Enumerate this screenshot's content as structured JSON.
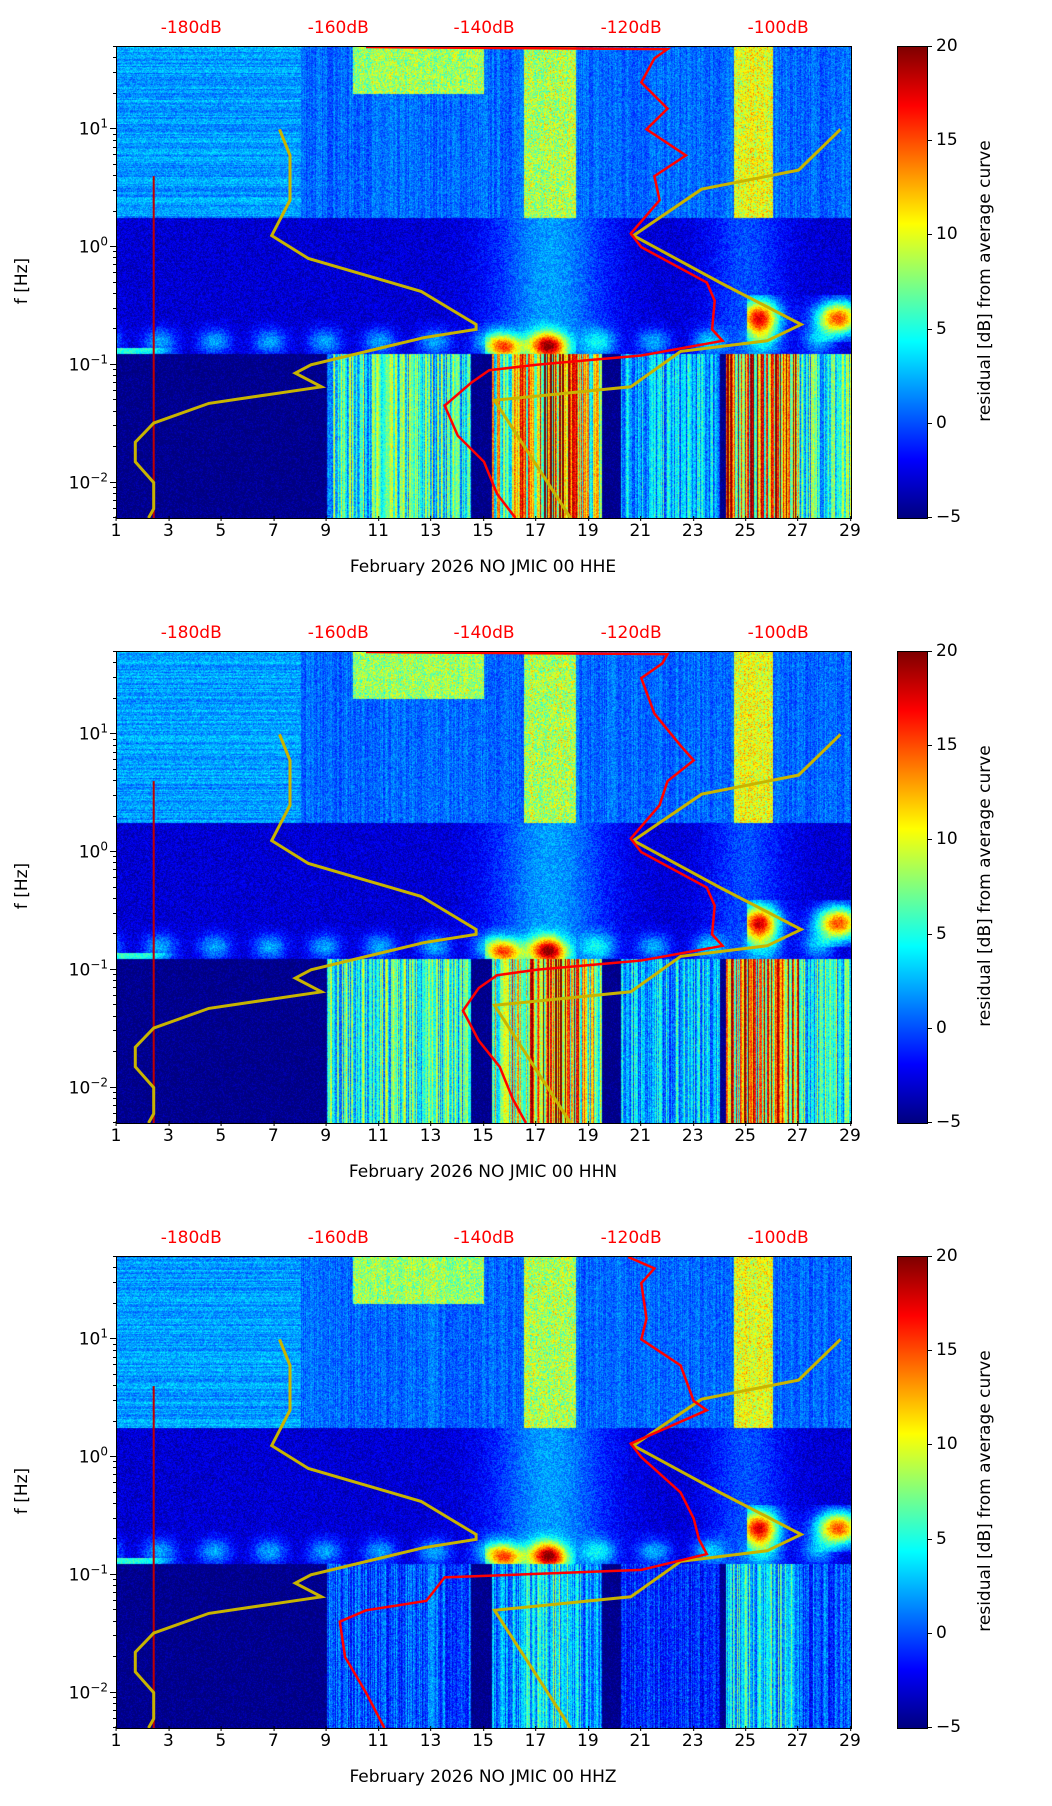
{
  "chart_data": [
    {
      "type": "heatmap",
      "title": "",
      "xlabel": "February 2026 NO JMIC 00 HHE",
      "ylabel": "f [Hz]",
      "xlim": [
        1,
        29
      ],
      "ylim": [
        0.005,
        50
      ],
      "yscale": "log",
      "xticks": [
        "1",
        "3",
        "5",
        "7",
        "9",
        "11",
        "13",
        "15",
        "17",
        "19",
        "21",
        "23",
        "25",
        "27",
        "29"
      ],
      "yticks": [
        {
          "base": "10",
          "exp": "−2",
          "value": 0.01
        },
        {
          "base": "10",
          "exp": "−1",
          "value": 0.1
        },
        {
          "base": "10",
          "exp": "0",
          "value": 1
        },
        {
          "base": "10",
          "exp": "1",
          "value": 10
        }
      ],
      "top_axis": {
        "labels": [
          "-180dB",
          "-160dB",
          "-140dB",
          "-120dB",
          "-100dB"
        ],
        "positions_day": [
          3.87,
          9.48,
          15.04,
          20.65,
          26.26
        ],
        "color": "#ff0000"
      },
      "colorbar": {
        "label": "residual [dB] from average curve",
        "range": [
          -5,
          20
        ],
        "ticks": [
          "20",
          "15",
          "10",
          "5",
          "0",
          "−5"
        ],
        "cmap": "jet"
      },
      "curves": [
        {
          "name": "low-noise-model",
          "color": "#c8b400",
          "points": [
            [
              7.2,
              10
            ],
            [
              7.6,
              6
            ],
            [
              7.6,
              2.5
            ],
            [
              6.9,
              1.25
            ],
            [
              8.3,
              0.8
            ],
            [
              12.6,
              0.42
            ],
            [
              14.7,
              0.22
            ],
            [
              14.7,
              0.2
            ],
            [
              12.7,
              0.17
            ],
            [
              8.4,
              0.1
            ],
            [
              7.8,
              0.085
            ],
            [
              8.8,
              0.065
            ],
            [
              4.5,
              0.047
            ],
            [
              2.4,
              0.032
            ],
            [
              1.7,
              0.022
            ],
            [
              1.7,
              0.015
            ],
            [
              2.4,
              0.01
            ],
            [
              2.4,
              0.006
            ],
            [
              2.2,
              0.005
            ]
          ]
        },
        {
          "name": "high-noise-model",
          "color": "#c8b400",
          "points": [
            [
              28.6,
              10
            ],
            [
              27,
              4.5
            ],
            [
              23.3,
              3.1
            ],
            [
              20.7,
              1.25
            ],
            [
              24,
              0.5
            ],
            [
              27.1,
              0.22
            ],
            [
              25.8,
              0.16
            ],
            [
              22.5,
              0.13
            ],
            [
              20.6,
              0.065
            ],
            [
              15.4,
              0.05
            ],
            [
              18.3,
              0.005
            ]
          ]
        },
        {
          "name": "average-curve",
          "color": "#ff0000",
          "points": [
            [
              10.5,
              50
            ],
            [
              22,
              48
            ],
            [
              21.5,
              40
            ],
            [
              21,
              25
            ],
            [
              22,
              15
            ],
            [
              21.2,
              10
            ],
            [
              22.7,
              6
            ],
            [
              21.5,
              4
            ],
            [
              21.7,
              2.5
            ],
            [
              20.6,
              1.3
            ],
            [
              21,
              1
            ],
            [
              23.5,
              0.5
            ],
            [
              23.8,
              0.35
            ],
            [
              23.7,
              0.2
            ],
            [
              24.1,
              0.16
            ],
            [
              21,
              0.12
            ],
            [
              17,
              0.1
            ],
            [
              15.2,
              0.09
            ],
            [
              14.5,
              0.07
            ],
            [
              13.5,
              0.045
            ],
            [
              14,
              0.025
            ],
            [
              15,
              0.015
            ],
            [
              15.5,
              0.008
            ],
            [
              16.2,
              0.005
            ]
          ]
        }
      ],
      "low_freq_level": 1.0
    },
    {
      "type": "heatmap",
      "title": "",
      "xlabel": "February 2026 NO JMIC 00 HHN",
      "ylabel": "f [Hz]",
      "xlim": [
        1,
        29
      ],
      "ylim": [
        0.005,
        50
      ],
      "yscale": "log",
      "xticks": [
        "1",
        "3",
        "5",
        "7",
        "9",
        "11",
        "13",
        "15",
        "17",
        "19",
        "21",
        "23",
        "25",
        "27",
        "29"
      ],
      "yticks": [
        {
          "base": "10",
          "exp": "−2",
          "value": 0.01
        },
        {
          "base": "10",
          "exp": "−1",
          "value": 0.1
        },
        {
          "base": "10",
          "exp": "0",
          "value": 1
        },
        {
          "base": "10",
          "exp": "1",
          "value": 10
        }
      ],
      "top_axis": {
        "labels": [
          "-180dB",
          "-160dB",
          "-140dB",
          "-120dB",
          "-100dB"
        ],
        "positions_day": [
          3.87,
          9.48,
          15.04,
          20.65,
          26.26
        ],
        "color": "#ff0000"
      },
      "colorbar": {
        "label": "residual [dB] from average curve",
        "range": [
          -5,
          20
        ],
        "ticks": [
          "20",
          "15",
          "10",
          "5",
          "0",
          "−5"
        ],
        "cmap": "jet"
      },
      "curves": [
        {
          "name": "low-noise-model",
          "color": "#c8b400",
          "points": [
            [
              7.2,
              10
            ],
            [
              7.6,
              6
            ],
            [
              7.6,
              2.5
            ],
            [
              6.9,
              1.25
            ],
            [
              8.3,
              0.8
            ],
            [
              12.6,
              0.42
            ],
            [
              14.7,
              0.22
            ],
            [
              14.7,
              0.2
            ],
            [
              12.7,
              0.17
            ],
            [
              8.4,
              0.1
            ],
            [
              7.8,
              0.085
            ],
            [
              8.8,
              0.065
            ],
            [
              4.5,
              0.047
            ],
            [
              2.4,
              0.032
            ],
            [
              1.7,
              0.022
            ],
            [
              1.7,
              0.015
            ],
            [
              2.4,
              0.01
            ],
            [
              2.4,
              0.006
            ],
            [
              2.2,
              0.005
            ]
          ]
        },
        {
          "name": "high-noise-model",
          "color": "#c8b400",
          "points": [
            [
              28.6,
              10
            ],
            [
              27,
              4.5
            ],
            [
              23.3,
              3.1
            ],
            [
              20.7,
              1.25
            ],
            [
              24,
              0.5
            ],
            [
              27.1,
              0.22
            ],
            [
              25.8,
              0.16
            ],
            [
              22.5,
              0.13
            ],
            [
              20.6,
              0.065
            ],
            [
              15.4,
              0.05
            ],
            [
              18.3,
              0.005
            ]
          ]
        },
        {
          "name": "average-curve",
          "color": "#ff0000",
          "points": [
            [
              10.5,
              50
            ],
            [
              22,
              48
            ],
            [
              21.8,
              40
            ],
            [
              21,
              30
            ],
            [
              21.5,
              15
            ],
            [
              22.5,
              8
            ],
            [
              23,
              6
            ],
            [
              22,
              4
            ],
            [
              21.7,
              2.5
            ],
            [
              20.6,
              1.3
            ],
            [
              21,
              1
            ],
            [
              23.5,
              0.5
            ],
            [
              23.8,
              0.35
            ],
            [
              23.7,
              0.2
            ],
            [
              24.1,
              0.16
            ],
            [
              21,
              0.12
            ],
            [
              17,
              0.1
            ],
            [
              15.5,
              0.09
            ],
            [
              14.8,
              0.07
            ],
            [
              14.2,
              0.045
            ],
            [
              14.8,
              0.025
            ],
            [
              15.6,
              0.015
            ],
            [
              16.1,
              0.008
            ],
            [
              16.6,
              0.005
            ]
          ]
        }
      ],
      "low_freq_level": 1.0
    },
    {
      "type": "heatmap",
      "title": "",
      "xlabel": "February 2026 NO JMIC 00 HHZ",
      "ylabel": "f [Hz]",
      "xlim": [
        1,
        29
      ],
      "ylim": [
        0.005,
        50
      ],
      "yscale": "log",
      "xticks": [
        "1",
        "3",
        "5",
        "7",
        "9",
        "11",
        "13",
        "15",
        "17",
        "19",
        "21",
        "23",
        "25",
        "27",
        "29"
      ],
      "yticks": [
        {
          "base": "10",
          "exp": "−2",
          "value": 0.01
        },
        {
          "base": "10",
          "exp": "−1",
          "value": 0.1
        },
        {
          "base": "10",
          "exp": "0",
          "value": 1
        },
        {
          "base": "10",
          "exp": "1",
          "value": 10
        }
      ],
      "top_axis": {
        "labels": [
          "-180dB",
          "-160dB",
          "-140dB",
          "-120dB",
          "-100dB"
        ],
        "positions_day": [
          3.87,
          9.48,
          15.04,
          20.65,
          26.26
        ],
        "color": "#ff0000"
      },
      "colorbar": {
        "label": "residual [dB] from average curve",
        "range": [
          -5,
          20
        ],
        "ticks": [
          "20",
          "15",
          "10",
          "5",
          "0",
          "−5"
        ],
        "cmap": "jet"
      },
      "curves": [
        {
          "name": "low-noise-model",
          "color": "#c8b400",
          "points": [
            [
              7.2,
              10
            ],
            [
              7.6,
              6
            ],
            [
              7.6,
              2.5
            ],
            [
              6.9,
              1.25
            ],
            [
              8.3,
              0.8
            ],
            [
              12.6,
              0.42
            ],
            [
              14.7,
              0.22
            ],
            [
              14.7,
              0.2
            ],
            [
              12.7,
              0.17
            ],
            [
              8.4,
              0.1
            ],
            [
              7.8,
              0.085
            ],
            [
              8.8,
              0.065
            ],
            [
              4.5,
              0.047
            ],
            [
              2.4,
              0.032
            ],
            [
              1.7,
              0.022
            ],
            [
              1.7,
              0.015
            ],
            [
              2.4,
              0.01
            ],
            [
              2.4,
              0.006
            ],
            [
              2.2,
              0.005
            ]
          ]
        },
        {
          "name": "high-noise-model",
          "color": "#c8b400",
          "points": [
            [
              28.6,
              10
            ],
            [
              27,
              4.5
            ],
            [
              23.3,
              3.1
            ],
            [
              20.7,
              1.25
            ],
            [
              24,
              0.5
            ],
            [
              27.1,
              0.22
            ],
            [
              25.8,
              0.16
            ],
            [
              22.5,
              0.13
            ],
            [
              20.6,
              0.065
            ],
            [
              15.4,
              0.05
            ],
            [
              18.3,
              0.005
            ]
          ]
        },
        {
          "name": "average-curve",
          "color": "#ff0000",
          "points": [
            [
              20.5,
              50
            ],
            [
              21.5,
              40
            ],
            [
              21,
              30
            ],
            [
              21.2,
              15
            ],
            [
              21,
              10
            ],
            [
              22.5,
              6
            ],
            [
              23,
              3
            ],
            [
              23.5,
              2.5
            ],
            [
              20.6,
              1.3
            ],
            [
              21,
              1
            ],
            [
              22.5,
              0.5
            ],
            [
              23,
              0.3
            ],
            [
              23.2,
              0.2
            ],
            [
              23.5,
              0.15
            ],
            [
              21,
              0.11
            ],
            [
              13.5,
              0.095
            ],
            [
              12.8,
              0.06
            ],
            [
              10.5,
              0.05
            ],
            [
              9.5,
              0.04
            ],
            [
              9.7,
              0.02
            ],
            [
              10.5,
              0.01
            ],
            [
              11.2,
              0.005
            ]
          ]
        }
      ],
      "low_freq_level": 0.45
    }
  ]
}
